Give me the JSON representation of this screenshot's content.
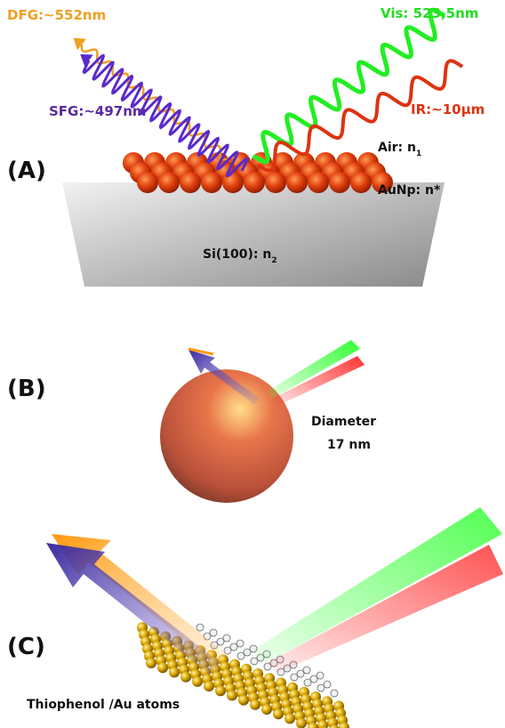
{
  "panel_a": {
    "label": "(A)",
    "dfg": "DFG:~552nm",
    "sfg": "SFG:~497nm",
    "vis": "Vis: 523,5nm",
    "ir": "IR:~10μm",
    "air": {
      "text": "Air: n",
      "sub": "1"
    },
    "aunp": "AuNp: n*",
    "si": {
      "text": "Si(100): n",
      "sub": "2"
    }
  },
  "panel_b": {
    "label": "(B)",
    "diameter": "Diameter",
    "size": "17 nm"
  },
  "panel_c": {
    "label": "(C)",
    "caption": "Thiophenol /Au atoms"
  }
}
